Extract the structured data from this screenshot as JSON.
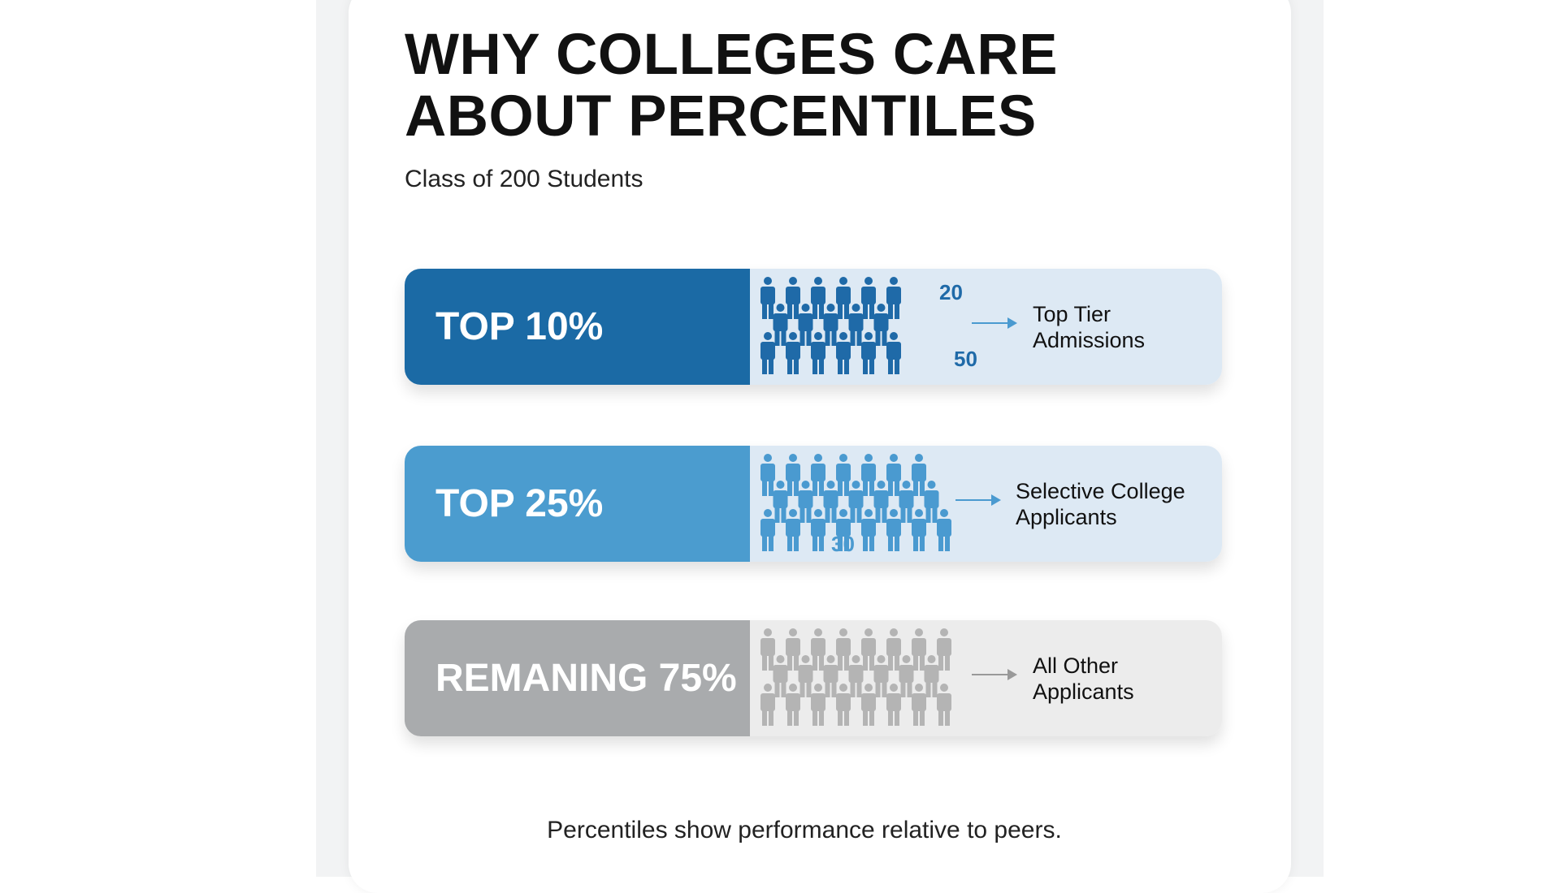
{
  "title_line1": "WHY COLLEGES CARE",
  "title_line2": "ABOUT PERCENTILES",
  "subtitle": "Class of 200 Students",
  "rows": [
    {
      "label": "TOP 10%",
      "destination_line1": "Top Tier",
      "destination_line2": "Admissions",
      "numbers": [
        "20",
        "50"
      ],
      "label_color": "#1b6aa5",
      "panel_color": "#dde9f4",
      "figure_color": "#1f6aa8",
      "figure_rows": [
        6,
        5,
        6
      ]
    },
    {
      "label": "TOP 25%",
      "destination_line1": "Selective College",
      "destination_line2": "Applicants",
      "numbers": [
        "30"
      ],
      "label_color": "#4b9ccf",
      "panel_color": "#dde9f4",
      "figure_color": "#4a9ad0",
      "figure_rows": [
        7,
        7,
        8
      ]
    },
    {
      "label": "REMANING 75%",
      "destination_line1": "All Other",
      "destination_line2": "Applicants",
      "numbers": [],
      "label_color": "#a9abad",
      "panel_color": "#ececec",
      "figure_color": "#b4b4b4",
      "figure_rows": [
        8,
        7,
        8
      ]
    }
  ],
  "footer": "Percentiles show performance relative to peers."
}
